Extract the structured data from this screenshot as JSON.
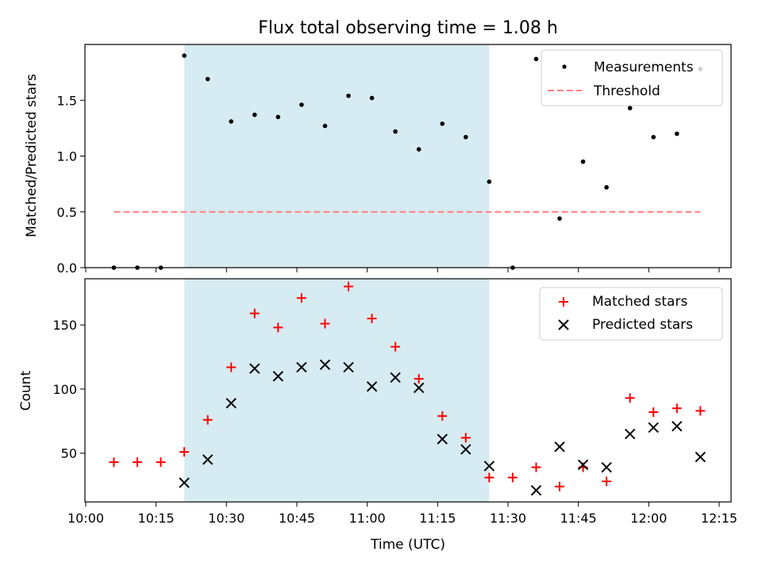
{
  "chart_data": [
    {
      "type": "scatter",
      "title": "Flux total observing time = 1.08 h",
      "xlabel": "",
      "ylabel": "Matched/Predicted stars",
      "ylim": [
        0,
        2.0
      ],
      "yticks": [
        "0.0",
        "0.5",
        "1.0",
        "1.5"
      ],
      "highlight_span": [
        "10:21",
        "11:26"
      ],
      "legend": {
        "placement": "top-right",
        "entries": [
          "Measurements",
          "Threshold"
        ]
      },
      "series": [
        {
          "name": "Measurements",
          "color": "#000000",
          "marker": "dot",
          "x": [
            "10:06",
            "10:11",
            "10:16",
            "10:21",
            "10:26",
            "10:31",
            "10:36",
            "10:41",
            "10:46",
            "10:51",
            "10:56",
            "11:01",
            "11:06",
            "11:11",
            "11:16",
            "11:21",
            "11:26",
            "11:31",
            "11:36",
            "11:41",
            "11:46",
            "11:51",
            "11:56",
            "12:01",
            "12:06",
            "12:11"
          ],
          "y": [
            0.0,
            0.0,
            0.0,
            1.9,
            1.69,
            1.31,
            1.37,
            1.35,
            1.46,
            1.27,
            1.54,
            1.52,
            1.22,
            1.06,
            1.29,
            1.17,
            0.77,
            0.0,
            1.87,
            0.44,
            0.95,
            0.72,
            1.43,
            1.17,
            1.2,
            1.78
          ]
        },
        {
          "name": "Threshold",
          "color": "#ff7f7f",
          "style": "dashed",
          "x": [
            "10:06",
            "12:11"
          ],
          "y": [
            0.5,
            0.5
          ]
        }
      ]
    },
    {
      "type": "scatter",
      "title": "",
      "xlabel": "Time (UTC)",
      "ylabel": "Count",
      "ylim": [
        12,
        186
      ],
      "yticks": [
        "50",
        "100",
        "150"
      ],
      "xticks": [
        "10:00",
        "10:15",
        "10:30",
        "10:45",
        "11:00",
        "11:15",
        "11:30",
        "11:45",
        "12:00",
        "12:15"
      ],
      "highlight_span": [
        "10:21",
        "11:26"
      ],
      "legend": {
        "placement": "top-right",
        "entries": [
          "Matched stars",
          "Predicted stars"
        ]
      },
      "series": [
        {
          "name": "Matched stars",
          "color": "#ff0000",
          "marker": "plus",
          "x": [
            "10:06",
            "10:11",
            "10:16",
            "10:21",
            "10:26",
            "10:31",
            "10:36",
            "10:41",
            "10:46",
            "10:51",
            "10:56",
            "11:01",
            "11:06",
            "11:11",
            "11:16",
            "11:21",
            "11:26",
            "11:31",
            "11:36",
            "11:41",
            "11:46",
            "11:51",
            "11:56",
            "12:01",
            "12:06",
            "12:11"
          ],
          "y": [
            43,
            43,
            43,
            51,
            76,
            117,
            159,
            148,
            171,
            151,
            180,
            155,
            133,
            108,
            79,
            62,
            31,
            31,
            39,
            24,
            39,
            28,
            93,
            82,
            85,
            83
          ]
        },
        {
          "name": "Predicted stars",
          "color": "#000000",
          "marker": "x",
          "x": [
            "10:21",
            "10:26",
            "10:31",
            "10:36",
            "10:41",
            "10:46",
            "10:51",
            "10:56",
            "11:01",
            "11:06",
            "11:11",
            "11:16",
            "11:21",
            "11:26",
            "11:36",
            "11:41",
            "11:46",
            "11:51",
            "11:56",
            "12:01",
            "12:06",
            "12:11"
          ],
          "y": [
            27,
            45,
            89,
            116,
            110,
            117,
            119,
            117,
            102,
            109,
            101,
            61,
            53,
            40,
            21,
            55,
            41,
            39,
            65,
            70,
            71,
            47
          ]
        }
      ]
    }
  ]
}
